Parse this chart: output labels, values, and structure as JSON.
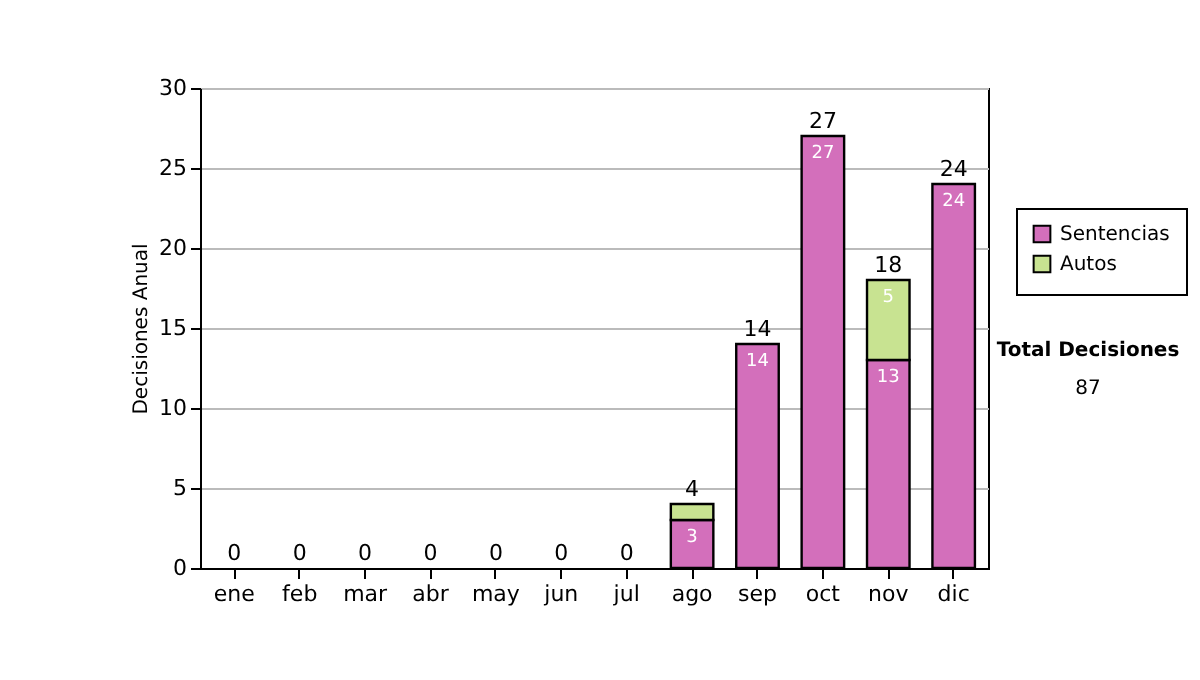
{
  "chart_data": {
    "type": "bar",
    "ylabel": "Decisiones Anual",
    "categories": [
      "ene",
      "feb",
      "mar",
      "abr",
      "may",
      "jun",
      "jul",
      "ago",
      "sep",
      "oct",
      "nov",
      "dic"
    ],
    "series": [
      {
        "name": "Sentencias",
        "color": "#d36fbb",
        "values": [
          0,
          0,
          0,
          0,
          0,
          0,
          0,
          3,
          14,
          27,
          13,
          24
        ],
        "value_labels": [
          null,
          null,
          null,
          null,
          null,
          null,
          null,
          "3",
          "14",
          "27",
          "13",
          "24"
        ]
      },
      {
        "name": "Autos",
        "color": "#c8e391",
        "values": [
          0,
          0,
          0,
          0,
          0,
          0,
          0,
          1,
          0,
          0,
          5,
          0
        ],
        "value_labels": [
          null,
          null,
          null,
          null,
          null,
          null,
          null,
          null,
          null,
          null,
          "5",
          null
        ]
      }
    ],
    "stacked": true,
    "totals": [
      "0",
      "0",
      "0",
      "0",
      "0",
      "0",
      "0",
      "4",
      "14",
      "27",
      "18",
      "24"
    ],
    "ylim": [
      0,
      30
    ],
    "yticks": [
      0,
      5,
      10,
      15,
      20,
      25,
      30
    ],
    "grid": "y",
    "legend": "right",
    "annotations": [
      "Total Decisiones",
      "87"
    ]
  }
}
